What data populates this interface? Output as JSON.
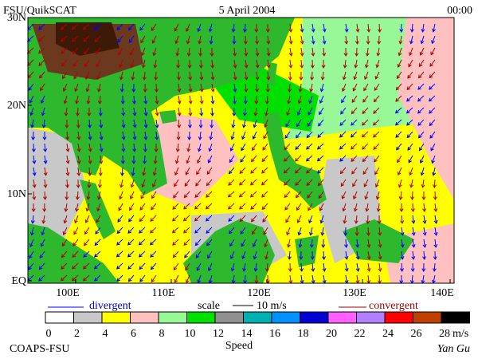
{
  "header": {
    "left": "FSU/QuikSCAT",
    "center": "5 April 2004",
    "right": "00:00"
  },
  "map": {
    "lat_labels": [
      "30N",
      "20N",
      "10N",
      "EQ"
    ],
    "lon_labels": [
      "100E",
      "110E",
      "120E",
      "130E",
      "140E"
    ]
  },
  "legend": {
    "divergent": "divergent",
    "scale": "scale",
    "scale_value": "10 m/s",
    "convergent": "convergent"
  },
  "colorbar": {
    "ticks": [
      0,
      2,
      4,
      6,
      8,
      10,
      12,
      14,
      16,
      18,
      20,
      22,
      24,
      26,
      28
    ],
    "colors": [
      "#ffffff",
      "#c8c8c8",
      "#ffff00",
      "#ffc0c0",
      "#98f898",
      "#00e000",
      "#909090",
      "#00b0b0",
      "#0090ff",
      "#0000d0",
      "#ff60ff",
      "#b080ff",
      "#ff0000",
      "#c04000",
      "#000000"
    ],
    "unit": "m/s",
    "title": "Speed"
  },
  "footer": {
    "left": "COAPS-FSU",
    "right": "Yan Gu"
  }
}
